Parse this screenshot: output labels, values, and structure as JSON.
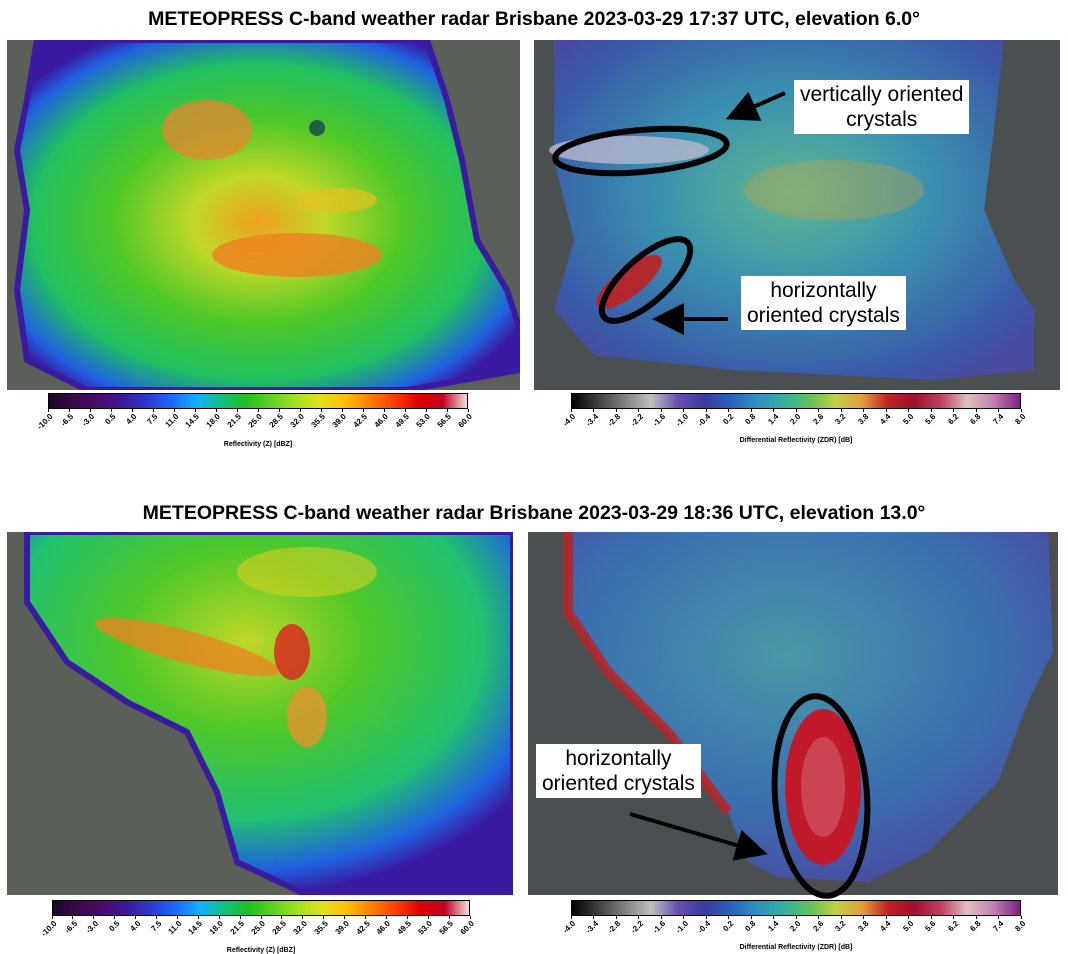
{
  "titles": {
    "top": "METEOPRESS C-band weather radar Brisbane 2023-03-29 17:37 UTC, elevation 6.0°",
    "bottom": "METEOPRESS C-band weather radar Brisbane 2023-03-29 18:36 UTC, elevation 13.0°"
  },
  "reflectivity_colorbar": {
    "label": "Reflectivity (Z) [dBZ]",
    "ticks": [
      "-10.0",
      "-6.5",
      "-3.0",
      "0.5",
      "4.0",
      "7.5",
      "11.0",
      "14.5",
      "18.0",
      "21.5",
      "25.0",
      "28.5",
      "32.0",
      "35.5",
      "39.0",
      "42.5",
      "46.0",
      "49.5",
      "53.0",
      "56.5",
      "60.0"
    ],
    "colors": [
      "#1a0526",
      "#3a0a4a",
      "#4a0a6a",
      "#3a1a9a",
      "#2a3ad0",
      "#1a6aff",
      "#10b0ff",
      "#10c080",
      "#20c020",
      "#60d020",
      "#a0e020",
      "#e0e020",
      "#ffc000",
      "#ff8000",
      "#ff4000",
      "#e00000",
      "#c00020",
      "#f0e0e0"
    ]
  },
  "zdr_colorbar": {
    "label": "Differential Reflectivity (ZDR) [dB]",
    "ticks": [
      "-4.0",
      "-3.4",
      "-2.8",
      "-2.2",
      "-1.6",
      "-1.0",
      "-0.4",
      "0.2",
      "0.8",
      "1.4",
      "2.0",
      "2.6",
      "3.2",
      "3.8",
      "4.4",
      "5.0",
      "5.6",
      "6.2",
      "6.8",
      "7.4",
      "8.0"
    ],
    "colors": [
      "#000000",
      "#404040",
      "#808080",
      "#c0c0c0",
      "#6a50b0",
      "#3a3aa0",
      "#2a60c0",
      "#3090c0",
      "#30b0a0",
      "#60c060",
      "#c0d040",
      "#e0a040",
      "#c02020",
      "#a01030",
      "#c04060",
      "#e0c0c0",
      "#c080b0",
      "#802080"
    ]
  },
  "annotations": {
    "vertically": "vertically oriented\ncrystals",
    "horizontally_top": "horizontally\noriented crystals",
    "horizontally_bottom": "horizontally\noriented crystals"
  }
}
